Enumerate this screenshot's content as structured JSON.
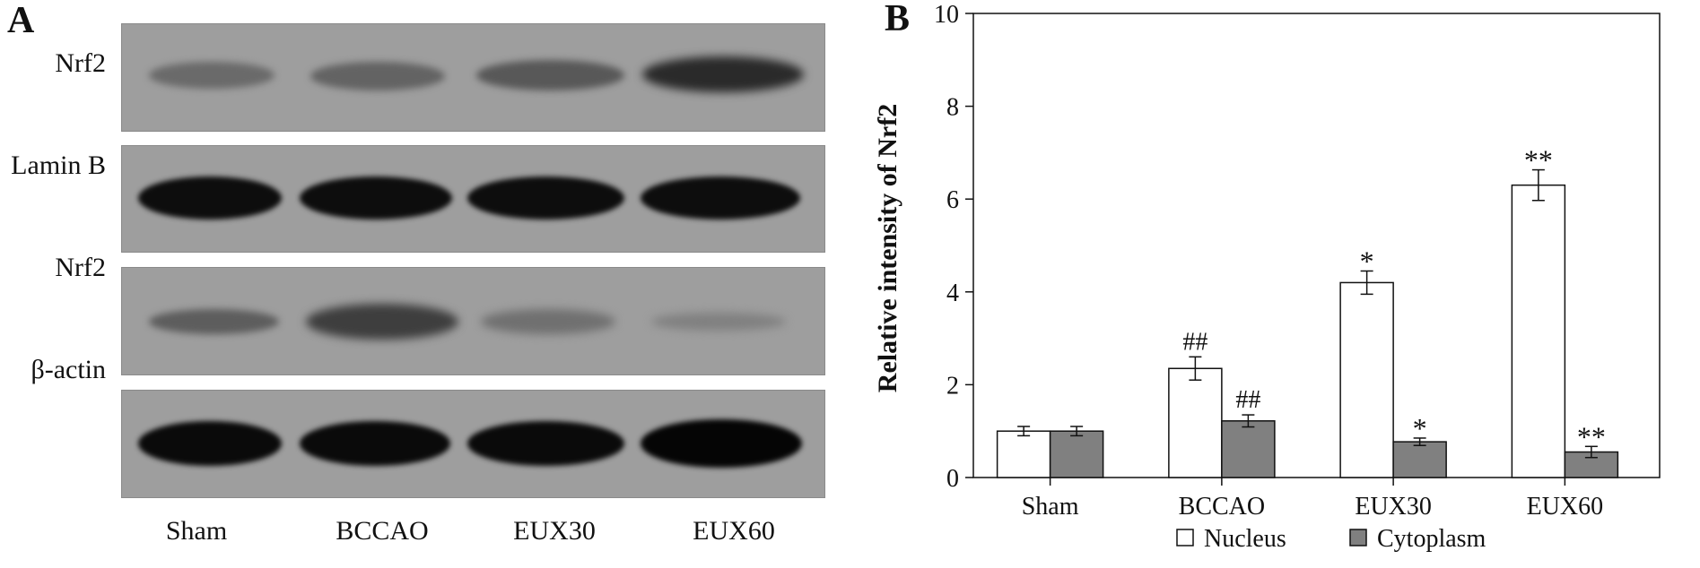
{
  "panel_a": {
    "letter": "A",
    "row_labels": [
      "Nrf2",
      "Lamin B",
      "Nrf2",
      "β-actin"
    ],
    "lane_labels": [
      "Sham",
      "BCCAO",
      "EUX30",
      "EUX60"
    ]
  },
  "panel_b": {
    "letter": "B"
  },
  "chart_data": {
    "type": "bar",
    "title": "",
    "xlabel": "",
    "ylabel": "Relative intensity of Nrf2",
    "ylim": [
      0,
      10
    ],
    "yticks": [
      0,
      2,
      4,
      6,
      8,
      10
    ],
    "categories": [
      "Sham",
      "BCCAO",
      "EUX30",
      "EUX60"
    ],
    "series": [
      {
        "name": "Nucleus",
        "color": "#ffffff",
        "values": [
          1.0,
          2.35,
          4.2,
          6.3
        ],
        "errors": [
          0.1,
          0.25,
          0.25,
          0.33
        ],
        "annotations": [
          "",
          "##",
          "*",
          "**"
        ]
      },
      {
        "name": "Cytoplasm",
        "color": "#808080",
        "values": [
          1.0,
          1.22,
          0.77,
          0.55
        ],
        "errors": [
          0.1,
          0.13,
          0.08,
          0.12
        ],
        "annotations": [
          "",
          "##",
          "*",
          "**"
        ]
      }
    ],
    "legend_position": "bottom",
    "grid": false
  }
}
